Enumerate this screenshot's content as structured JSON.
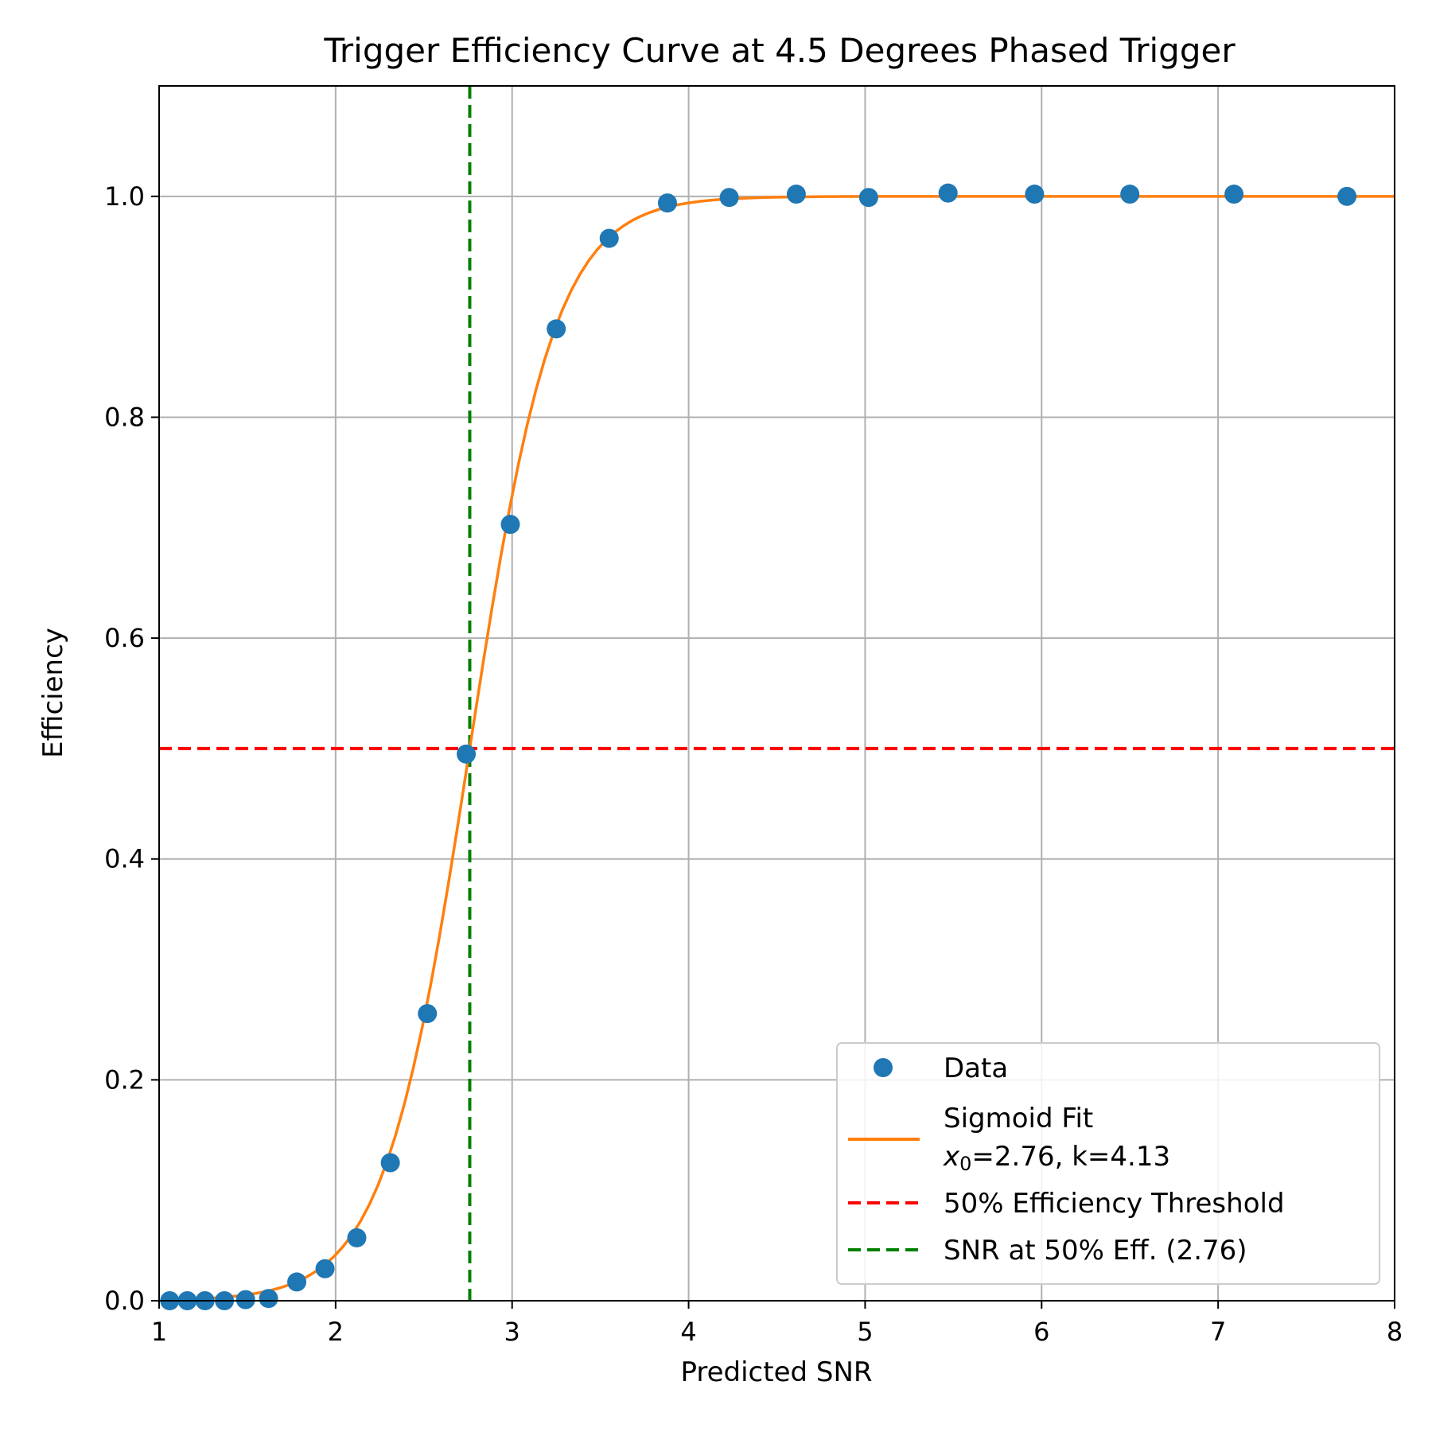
{
  "chart_data": {
    "type": "scatter",
    "title": "Trigger Efficiency Curve at 4.5 Degrees Phased Trigger",
    "xlabel": "Predicted SNR",
    "ylabel": "Efficiency",
    "xlim": [
      1,
      8
    ],
    "ylim": [
      0,
      1.1
    ],
    "xticks": [
      "1",
      "2",
      "3",
      "4",
      "5",
      "6",
      "7",
      "8"
    ],
    "yticks": [
      "0.0",
      "0.2",
      "0.4",
      "0.6",
      "0.8",
      "1.0"
    ],
    "grid": true,
    "legend_position": "lower-right",
    "series": [
      {
        "name": "Data",
        "kind": "points",
        "color": "#1f77b4",
        "x": [
          1.06,
          1.16,
          1.26,
          1.37,
          1.49,
          1.62,
          1.78,
          1.94,
          2.12,
          2.31,
          2.52,
          2.74,
          2.99,
          3.25,
          3.55,
          3.88,
          4.23,
          4.61,
          5.02,
          5.47,
          5.96,
          6.5,
          7.09,
          7.73
        ],
        "y": [
          0.0,
          0.0,
          0.0,
          0.0,
          0.001,
          0.002,
          0.017,
          0.029,
          0.057,
          0.125,
          0.26,
          0.495,
          0.703,
          0.88,
          0.962,
          0.994,
          0.999,
          1.002,
          0.999,
          1.003,
          1.002,
          1.002,
          1.002,
          1.0
        ]
      },
      {
        "name": "Sigmoid Fit",
        "name_line2_prefix": "x",
        "name_line2_subscript": "0",
        "name_line2_rest": "=2.76, k=4.13",
        "kind": "sigmoid",
        "color": "#ff7f0e",
        "x0": 2.76,
        "k": 4.13
      },
      {
        "name": "50% Efficiency Threshold",
        "kind": "hline",
        "color": "#ff0000",
        "y": 0.5
      },
      {
        "name": "SNR at 50% Eff. (2.76)",
        "kind": "vline",
        "color": "#008000",
        "x": 2.76
      }
    ]
  }
}
